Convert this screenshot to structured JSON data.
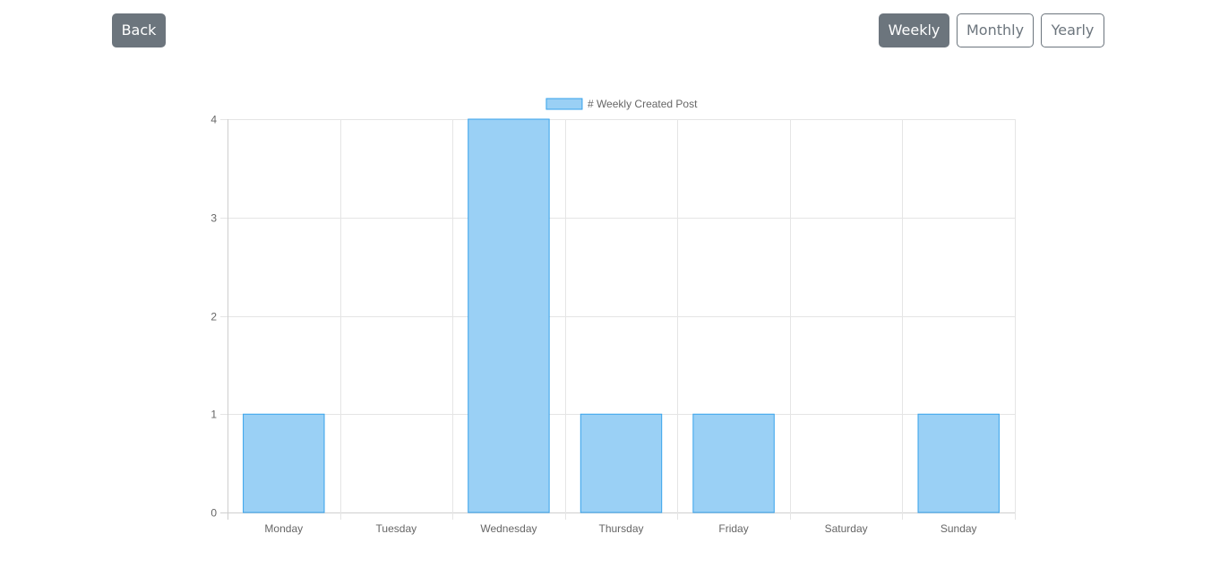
{
  "toolbar": {
    "back_label": "Back",
    "weekly_label": "Weekly",
    "monthly_label": "Monthly",
    "yearly_label": "Yearly",
    "active_period": "Weekly"
  },
  "colors": {
    "button_gray": "#6c757d",
    "bar_fill": "#9ad0f5",
    "bar_border": "#36a2eb",
    "grid": "#e5e5e5",
    "text": "#666666"
  },
  "chart_data": {
    "type": "bar",
    "title": "",
    "xlabel": "",
    "ylabel": "",
    "categories": [
      "Monday",
      "Tuesday",
      "Wednesday",
      "Thursday",
      "Friday",
      "Saturday",
      "Sunday"
    ],
    "series": [
      {
        "name": "# Weekly Created Post",
        "values": [
          1,
          0,
          4,
          1,
          1,
          0,
          1
        ]
      }
    ],
    "ylim": [
      0,
      4
    ],
    "yticks": [
      0,
      1,
      2,
      3,
      4
    ],
    "grid": true,
    "legend": "top-center"
  }
}
